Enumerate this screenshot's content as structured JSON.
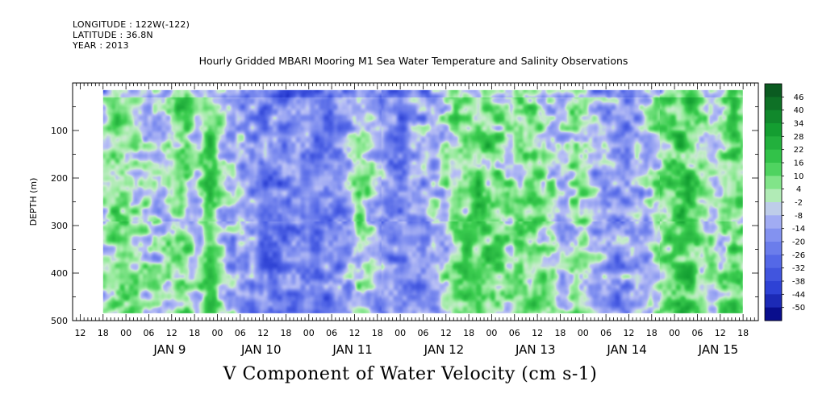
{
  "header": {
    "longitude": "LONGITUDE : 122W(-122)",
    "latitude": "LATITUDE : 36.8N",
    "year": "YEAR : 2013"
  },
  "chart_data": {
    "type": "heatmap",
    "title": "Hourly Gridded MBARI Mooring M1 Sea Water Temperature and Salinity Observations",
    "xlabel": "V Component of Water Velocity (cm s-1)",
    "ylabel": "DEPTH (m)",
    "x_axis": {
      "unit": "hours",
      "range_hours_from_jan9_00": [
        -14,
        166
      ],
      "data_start_hours": -6,
      "data_end_hours": 162,
      "hour_ticks": [
        "12",
        "18",
        "00",
        "06",
        "12",
        "18",
        "00",
        "06",
        "12",
        "18",
        "00",
        "06",
        "12",
        "18",
        "00",
        "06",
        "12",
        "18",
        "00",
        "06",
        "12",
        "18",
        "00",
        "06",
        "12",
        "18",
        "00",
        "06",
        "12",
        "18"
      ],
      "day_labels": [
        "JAN  9",
        "JAN 10",
        "JAN 11",
        "JAN 12",
        "JAN 13",
        "JAN 14",
        "JAN 15"
      ]
    },
    "y_axis": {
      "range": [
        0,
        500
      ],
      "reversed": true,
      "tick_labels": [
        100,
        200,
        300,
        400,
        500
      ],
      "data_top": 15,
      "data_bottom": 485
    },
    "colorbar": {
      "levels": [
        46,
        40,
        34,
        28,
        22,
        16,
        10,
        4,
        -2,
        -8,
        -14,
        -20,
        -26,
        -32,
        -38,
        -44,
        -50
      ],
      "min": -50,
      "max": 50
    },
    "colors": {
      "green_strong": "#1fbf3a",
      "green_light": "#9ee8a2",
      "blue_light": "#b8bff2",
      "blue_mid": "#7f8df0",
      "blue_dark": "#3348e0"
    },
    "field_features": {
      "green_bands_hours": [
        [
          -4,
          0,
          0.6
        ],
        [
          2,
          6,
          0.3
        ],
        [
          13,
          16,
          0.7
        ],
        [
          21,
          23,
          0.9
        ],
        [
          28,
          30,
          0.2
        ],
        [
          60,
          64,
          0.6
        ],
        [
          85,
          100,
          0.8
        ],
        [
          104,
          110,
          0.6
        ],
        [
          118,
          121,
          0.5
        ],
        [
          140,
          152,
          0.9
        ],
        [
          158,
          162,
          0.8
        ]
      ],
      "blue_bands_hours": [
        [
          30,
          52,
          0.9
        ],
        [
          52,
          58,
          0.6
        ],
        [
          65,
          78,
          0.7
        ],
        [
          125,
          134,
          0.6
        ]
      ]
    }
  }
}
